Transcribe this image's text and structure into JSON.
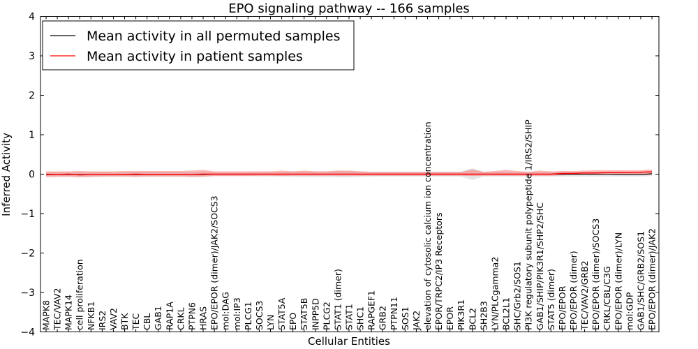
{
  "chart_data": {
    "type": "line",
    "title": "EPO signaling pathway -- 166 samples",
    "xlabel": "Cellular Entities",
    "ylabel": "Inferred Activity",
    "ylim": [
      -4,
      4
    ],
    "yticks": [
      -4,
      -3,
      -2,
      -1,
      0,
      1,
      2,
      3,
      4
    ],
    "ytick_labels": [
      "−4",
      "−3",
      "−2",
      "−1",
      "0",
      "1",
      "2",
      "3",
      "4"
    ],
    "legend_position": "top-left",
    "categories": [
      "MAPK8",
      "TEC/VAV2",
      "MAPK14",
      "cell proliferation",
      "NFKB1",
      "IRS2",
      "VAV2",
      "BTK",
      "TEC",
      "CBL",
      "GAB1",
      "RAP1A",
      "CRKL",
      "PTPN6",
      "HRAS",
      "EPO/EPOR (dimer)/JAK2/SOCS3",
      "mol:DAG",
      "mol:IP3",
      "PLCG1",
      "SOCS3",
      "LYN",
      "STAT5A",
      "EPO",
      "STAT5B",
      "INPP5D",
      "PLCG2",
      "STAT1 (dimer)",
      "STAT1",
      "SHC1",
      "RAPGEF1",
      "GRB2",
      "PTPN11",
      "SOS1",
      "JAK2",
      "elevation of cytosolic calcium ion concentration",
      "EPOR/TRPC2/IP3 Receptors",
      "EPOR",
      "PIK3R1",
      "BCL2",
      "SH2B3",
      "LYN/PLCgamma2",
      "BCL2L1",
      "SHC/Grb2/SOS1",
      "PI3K regulatory subunit polypeptide 1/IRS2/SHIP",
      "GAB1/SHIP/PIK3R1/SHP2/SHC",
      "STAT5 (dimer)",
      "EPO/EPOR",
      "EPO/EPOR (dimer)",
      "TEC/VAV2/GRB2",
      "EPO/EPOR (dimer)/SOCS3",
      "CRKL/CBL/C3G",
      "EPO/EPOR (dimer)/LYN",
      "mol:GDP",
      "GAB1/SHC/GRB2/SOS1",
      "EPO/EPOR (dimer)/JAK2"
    ],
    "series": [
      {
        "name": "Mean activity in all permuted samples",
        "color": "#000000",
        "values": [
          0,
          -0.01,
          -0.01,
          -0.01,
          -0.01,
          -0.01,
          -0.01,
          -0.01,
          -0.01,
          -0.01,
          -0.01,
          -0.01,
          -0.01,
          -0.01,
          -0.01,
          0,
          0,
          0,
          0,
          0,
          0,
          0,
          0,
          0,
          0,
          0,
          0,
          0,
          0,
          0,
          0,
          0,
          0,
          0,
          0,
          0,
          0,
          0,
          0,
          0,
          0,
          0,
          0,
          0,
          0,
          0,
          0,
          0,
          0,
          0,
          0,
          -0.01,
          -0.01,
          -0.01,
          0.01
        ],
        "band_lower": [
          -0.04,
          -0.05,
          -0.05,
          -0.06,
          -0.06,
          -0.06,
          -0.06,
          -0.06,
          -0.06,
          -0.06,
          -0.06,
          -0.06,
          -0.06,
          -0.06,
          -0.07,
          -0.05,
          -0.05,
          -0.05,
          -0.05,
          -0.06,
          -0.06,
          -0.06,
          -0.07,
          -0.07,
          -0.07,
          -0.07,
          -0.08,
          -0.08,
          -0.07,
          -0.06,
          -0.06,
          -0.06,
          -0.06,
          -0.06,
          -0.06,
          -0.06,
          -0.06,
          -0.06,
          -0.15,
          -0.06,
          -0.06,
          -0.06,
          -0.06,
          -0.06,
          -0.06,
          -0.06,
          -0.06,
          -0.06,
          -0.06,
          -0.06,
          -0.06,
          -0.06,
          -0.06,
          -0.06,
          -0.05
        ],
        "band_upper": [
          0.04,
          0.05,
          0.05,
          0.06,
          0.06,
          0.06,
          0.06,
          0.06,
          0.06,
          0.06,
          0.06,
          0.06,
          0.06,
          0.06,
          0.07,
          0.05,
          0.05,
          0.05,
          0.05,
          0.06,
          0.06,
          0.06,
          0.07,
          0.07,
          0.07,
          0.07,
          0.08,
          0.08,
          0.07,
          0.06,
          0.06,
          0.06,
          0.06,
          0.06,
          0.06,
          0.06,
          0.06,
          0.06,
          0.15,
          0.06,
          0.06,
          0.06,
          0.06,
          0.06,
          0.06,
          0.06,
          0.06,
          0.06,
          0.06,
          0.06,
          0.06,
          0.06,
          0.06,
          0.06,
          0.05
        ]
      },
      {
        "name": "Mean activity in patient samples",
        "color": "#ff0000",
        "values": [
          -0.01,
          -0.01,
          0,
          -0.02,
          -0.01,
          -0.01,
          -0.01,
          -0.01,
          0,
          -0.01,
          -0.01,
          -0.01,
          -0.01,
          -0.01,
          0,
          0,
          0,
          0,
          0,
          0,
          0,
          0,
          0,
          0,
          0,
          0,
          0,
          0,
          0,
          0,
          0,
          0,
          0,
          0,
          0,
          0,
          0,
          0,
          0,
          0,
          0,
          0,
          0,
          0,
          0,
          0,
          0.02,
          0.02,
          0.03,
          0.03,
          0.04,
          0.04,
          0.04,
          0.05,
          0.06
        ],
        "band_lower": [
          -0.08,
          -0.07,
          -0.07,
          -0.08,
          -0.07,
          -0.06,
          -0.06,
          -0.06,
          -0.07,
          -0.06,
          -0.06,
          -0.06,
          -0.06,
          -0.07,
          -0.06,
          -0.05,
          -0.05,
          -0.05,
          -0.05,
          -0.04,
          -0.04,
          -0.05,
          -0.04,
          -0.04,
          -0.04,
          -0.04,
          -0.04,
          -0.04,
          -0.04,
          -0.04,
          -0.04,
          -0.04,
          -0.04,
          -0.04,
          -0.04,
          -0.04,
          -0.04,
          -0.04,
          -0.05,
          -0.04,
          -0.04,
          -0.04,
          -0.04,
          -0.04,
          -0.04,
          -0.04,
          -0.03,
          -0.02,
          -0.02,
          -0.02,
          -0.02,
          -0.02,
          -0.02,
          -0.02,
          -0.02
        ],
        "band_upper": [
          0.07,
          0.07,
          0.07,
          0.08,
          0.07,
          0.07,
          0.07,
          0.08,
          0.08,
          0.08,
          0.08,
          0.08,
          0.08,
          0.09,
          0.11,
          0.07,
          0.07,
          0.07,
          0.07,
          0.07,
          0.07,
          0.09,
          0.07,
          0.09,
          0.07,
          0.07,
          0.09,
          0.09,
          0.07,
          0.06,
          0.06,
          0.06,
          0.06,
          0.06,
          0.06,
          0.06,
          0.06,
          0.06,
          0.12,
          0.06,
          0.08,
          0.11,
          0.08,
          0.06,
          0.09,
          0.07,
          0.08,
          0.08,
          0.09,
          0.1,
          0.1,
          0.1,
          0.1,
          0.1,
          0.12
        ]
      }
    ]
  }
}
